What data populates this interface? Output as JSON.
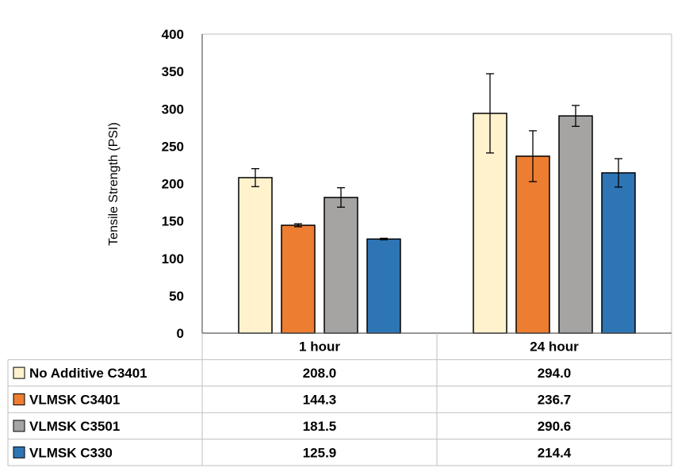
{
  "chart_data": {
    "type": "bar",
    "categories": [
      "1 hour",
      "24 hour"
    ],
    "ylabel": "Tensile Strength (PSI)",
    "ylim": [
      0,
      400
    ],
    "yticks": [
      0,
      50,
      100,
      150,
      200,
      250,
      300,
      350,
      400
    ],
    "grid": false,
    "legend": "data-table below chart",
    "series": [
      {
        "name": "No Additive C3401",
        "color": "#fff2cc",
        "values": [
          208.0,
          294.0
        ],
        "labels": [
          "208.0",
          "294.0"
        ],
        "error": [
          12,
          53
        ]
      },
      {
        "name": "VLMSK C3401",
        "color": "#ed7d31",
        "values": [
          144.3,
          236.7
        ],
        "labels": [
          "144.3",
          "236.7"
        ],
        "error": [
          2,
          34
        ]
      },
      {
        "name": "VLMSK C3501",
        "color": "#a6a3a3",
        "values": [
          181.5,
          290.6
        ],
        "labels": [
          "181.5",
          "290.6"
        ],
        "error": [
          13,
          14
        ]
      },
      {
        "name": "VLMSK C330",
        "color": "#2e75b6",
        "values": [
          125.9,
          214.4
        ],
        "labels": [
          "125.9",
          "214.4"
        ],
        "error": [
          1,
          19
        ]
      }
    ]
  }
}
